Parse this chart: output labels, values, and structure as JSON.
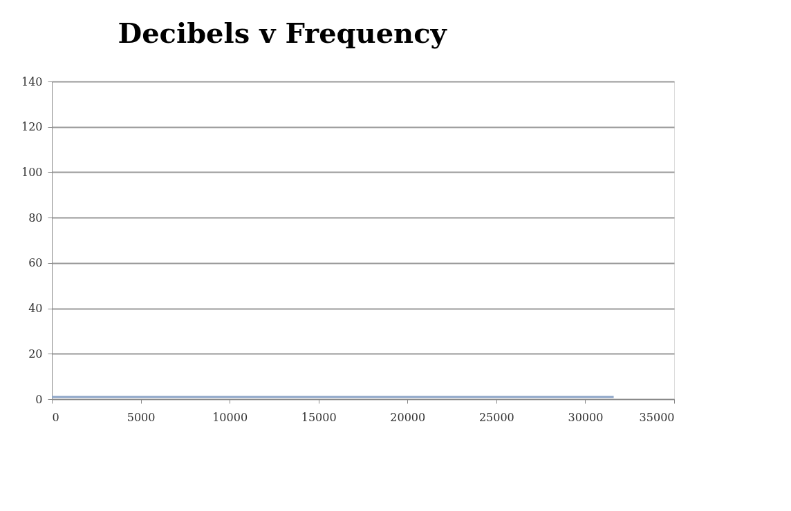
{
  "chart_data": {
    "type": "line",
    "title": "Decibels v Frequency",
    "x": [
      0,
      31600
    ],
    "series": [
      {
        "color": "#8ea6c8",
        "values": [
          1,
          1
        ]
      }
    ],
    "xlim": [
      0,
      35000
    ],
    "xticks": [
      0,
      5000,
      10000,
      15000,
      20000,
      25000,
      30000,
      35000
    ],
    "ylim": [
      0,
      140
    ],
    "yticks": [
      0,
      20,
      40,
      60,
      80,
      100,
      120,
      140
    ],
    "grid": "y",
    "legend": false,
    "marker": "none",
    "line_style": "solid"
  }
}
